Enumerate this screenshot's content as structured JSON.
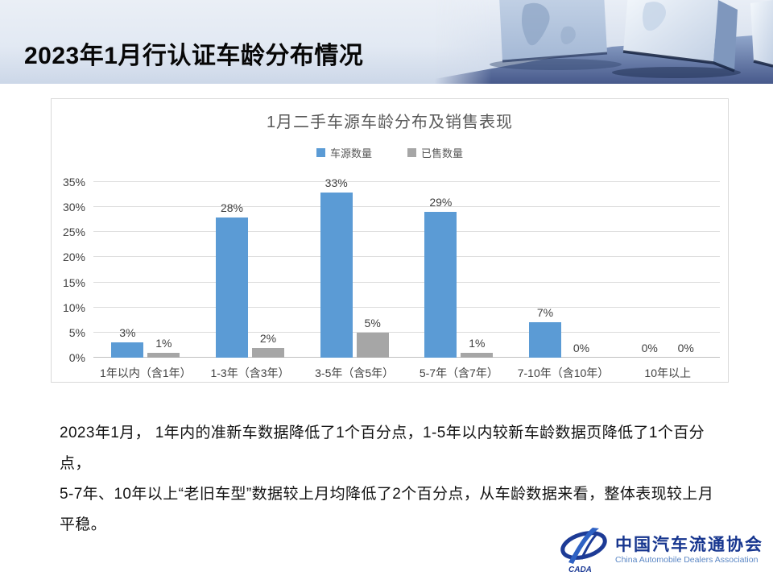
{
  "slide": {
    "title": "2023年1月行认证车龄分布情况"
  },
  "chart_data": {
    "type": "bar",
    "title": "1月二手车源车龄分布及销售表现",
    "categories": [
      "1年以内（含1年）",
      "1-3年（含3年）",
      "3-5年（含5年）",
      "5-7年（含7年）",
      "7-10年（含10年）",
      "10年以上"
    ],
    "series": [
      {
        "name": "车源数量",
        "color": "#5b9bd5",
        "values": [
          3,
          28,
          33,
          29,
          7,
          0
        ]
      },
      {
        "name": "已售数量",
        "color": "#a6a6a6",
        "values": [
          1,
          2,
          5,
          1,
          0,
          0
        ]
      }
    ],
    "value_suffix": "%",
    "ylim": [
      0,
      35
    ],
    "ytick_step": 5,
    "yticks": [
      "0%",
      "5%",
      "10%",
      "15%",
      "20%",
      "25%",
      "30%",
      "35%"
    ],
    "grid": true,
    "legend_position": "top"
  },
  "body": {
    "lines": [
      "2023年1月， 1年内的准新车数据降低了1个百分点，1-5年以内较新车龄数据页降低了1个百分点，",
      "5-7年、10年以上“老旧车型”数据较上月均降低了2个百分点，从车龄数据来看，整体表现较上月",
      "平稳。"
    ]
  },
  "logo": {
    "cn": "中国汽车流通协会",
    "en": "China Automobile Dealers Association",
    "acronym": "CADA"
  },
  "colors": {
    "series_blue": "#5b9bd5",
    "series_gray": "#a6a6a6",
    "gridline": "#dcdcdc",
    "axis_text": "#404040",
    "chart_text": "#595959",
    "logo_navy": "#17368f",
    "logo_blue": "#5b87c5",
    "header_light": "#eaeff6",
    "header_dark": "#ccd7e8"
  }
}
